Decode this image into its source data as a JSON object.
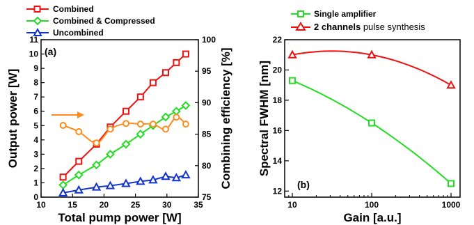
{
  "chart_data": [
    {
      "type": "line",
      "panel_label": "(a)",
      "xlabel": "Total pump power  [W]",
      "ylabel": "Output power  [W]",
      "y2label": "Combining efficiency  [%]",
      "xlim": [
        10,
        35
      ],
      "ylim": [
        0,
        11
      ],
      "y2lim": [
        75,
        100
      ],
      "xticks": [
        10,
        15,
        20,
        25,
        30,
        35
      ],
      "yticks": [
        0,
        1,
        2,
        3,
        4,
        5,
        6,
        7,
        8,
        9,
        10,
        11
      ],
      "y2ticks": [
        75,
        80,
        85,
        90,
        95,
        100
      ],
      "grid": false,
      "legend_position": "top-left, outside plot",
      "series": [
        {
          "name": "Combined",
          "color": "#ee1111",
          "marker": "square",
          "axis": "left",
          "x": [
            13.5,
            16.0,
            18.8,
            21.0,
            23.5,
            25.8,
            27.8,
            29.8,
            31.5,
            33.0
          ],
          "y": [
            1.4,
            2.5,
            3.7,
            4.9,
            6.0,
            7.0,
            8.0,
            8.7,
            9.4,
            10.0
          ]
        },
        {
          "name": "Combined & Compressed",
          "color": "#22dd22",
          "marker": "diamond",
          "axis": "left",
          "x": [
            13.5,
            16.0,
            18.8,
            21.0,
            23.5,
            25.8,
            27.8,
            29.8,
            31.5,
            33.0
          ],
          "y": [
            0.85,
            1.55,
            2.25,
            3.0,
            3.7,
            4.4,
            5.0,
            5.6,
            6.0,
            6.4
          ]
        },
        {
          "name": "Uncombined",
          "color": "#1133cc",
          "marker": "triangle",
          "axis": "left",
          "x": [
            13.5,
            16.0,
            18.8,
            21.0,
            23.5,
            25.8,
            27.8,
            29.8,
            31.5,
            33.0
          ],
          "y": [
            0.3,
            0.5,
            0.7,
            0.8,
            0.95,
            1.1,
            1.2,
            1.45,
            1.35,
            1.55
          ]
        },
        {
          "color": "#ff8c1a",
          "marker": "circle",
          "axis": "right",
          "x": [
            13.5,
            16.0,
            18.8,
            21.0,
            23.5,
            25.8,
            27.8,
            29.8,
            31.5,
            33.0
          ],
          "y": [
            86.4,
            85.4,
            83.6,
            85.8,
            86.7,
            86.6,
            86.6,
            85.8,
            87.7,
            86.6
          ]
        }
      ],
      "annotations": [
        {
          "type": "arrow",
          "direction": "right",
          "color": "#ff8c1a",
          "points_to_axis": "right"
        }
      ]
    },
    {
      "type": "line",
      "panel_label": "(b)",
      "xlabel": "Gain  [a.u.]",
      "ylabel": "Spectral FWHM  [nm]",
      "xscale": "log",
      "xlim": [
        8,
        1300
      ],
      "ylim": [
        11.6,
        22
      ],
      "xticks": [
        10,
        100,
        1000
      ],
      "yticks": [
        12,
        14,
        16,
        18,
        20,
        22
      ],
      "grid": false,
      "legend_position": "top-left, outside plot",
      "series": [
        {
          "name": "Single amplifier",
          "color": "#22dd22",
          "marker": "square",
          "x": [
            10,
            100,
            1000
          ],
          "y": [
            19.3,
            16.5,
            12.5
          ]
        },
        {
          "name": "2 channels pulse synthesis",
          "color": "#ee1111",
          "marker": "triangle",
          "x": [
            10,
            100,
            1000
          ],
          "y": [
            21.0,
            21.0,
            19.0
          ]
        }
      ]
    }
  ]
}
